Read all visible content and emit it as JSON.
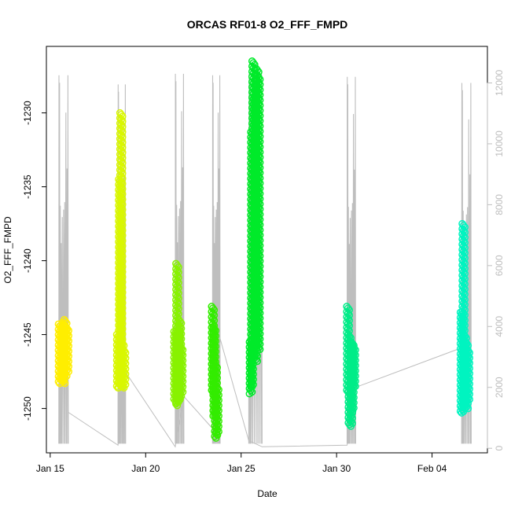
{
  "chart_data": {
    "type": "scatter",
    "title": "ORCAS RF01-8 O2_FFF_FMPD",
    "xlabel": "Date",
    "ylabel": "O2_FFF_FMPD",
    "x_ticks": [
      "Jan 15",
      "Jan 20",
      "Jan 25",
      "Jan 30",
      "Feb 04"
    ],
    "x_tick_days": [
      15,
      20,
      25,
      30,
      35
    ],
    "xlim_days": [
      14.8,
      37.9
    ],
    "ylim": [
      -1253.0,
      -1225.5
    ],
    "y_ticks": [
      -1250,
      -1245,
      -1240,
      -1235,
      -1230
    ],
    "y2_ticks": [
      0,
      2000,
      4000,
      6000,
      8000,
      10000,
      12000
    ],
    "y2lim": [
      -150,
      13200
    ],
    "secondary_color": "#bebebe",
    "grid": false,
    "series": [
      {
        "color": "#ffee00",
        "points": [
          {
            "day": 15.5,
            "min": -1248.3,
            "max": -1244.3
          },
          {
            "day": 15.6,
            "min": -1248.1,
            "max": -1244.4
          },
          {
            "day": 15.7,
            "min": -1248.3,
            "max": -1244.2
          },
          {
            "day": 15.8,
            "min": -1247.8,
            "max": -1244.0
          },
          {
            "day": 15.9,
            "min": -1247.5,
            "max": -1244.5
          }
        ]
      },
      {
        "color": "#d9f700",
        "points": [
          {
            "day": 18.55,
            "min": -1248.6,
            "max": -1245.0
          },
          {
            "day": 18.65,
            "min": -1248.6,
            "max": -1234.5
          },
          {
            "day": 18.72,
            "min": -1248.0,
            "max": -1230.0
          },
          {
            "day": 18.8,
            "min": -1248.6,
            "max": -1245.5
          },
          {
            "day": 18.88,
            "min": -1248.5,
            "max": -1246.0
          }
        ]
      },
      {
        "color": "#88f200",
        "points": [
          {
            "day": 21.55,
            "min": -1249.6,
            "max": -1244.8
          },
          {
            "day": 21.65,
            "min": -1249.8,
            "max": -1240.2
          },
          {
            "day": 21.72,
            "min": -1249.5,
            "max": -1244.5
          },
          {
            "day": 21.8,
            "min": -1249.4,
            "max": -1244.0
          },
          {
            "day": 21.88,
            "min": -1249.0,
            "max": -1245.8
          }
        ]
      },
      {
        "color": "#33ec00",
        "points": [
          {
            "day": 23.52,
            "min": -1249.0,
            "max": -1243.1
          },
          {
            "day": 23.6,
            "min": -1250.5,
            "max": -1244.5
          },
          {
            "day": 23.68,
            "min": -1252.0,
            "max": -1247.0
          },
          {
            "day": 23.76,
            "min": -1251.8,
            "max": -1248.5
          }
        ]
      },
      {
        "color": "#00ea2a",
        "points": [
          {
            "day": 25.5,
            "min": -1249.0,
            "max": -1245.5
          },
          {
            "day": 25.57,
            "min": -1248.5,
            "max": -1231.3
          },
          {
            "day": 25.64,
            "min": -1246.5,
            "max": -1226.5
          },
          {
            "day": 25.71,
            "min": -1245.0,
            "max": -1228.0
          },
          {
            "day": 25.78,
            "min": -1246.8,
            "max": -1229.0
          },
          {
            "day": 25.85,
            "min": -1245.5,
            "max": -1227.0
          },
          {
            "day": 25.92,
            "min": -1246.0,
            "max": -1227.5
          }
        ]
      },
      {
        "color": "#00ec88",
        "points": [
          {
            "day": 30.6,
            "min": -1249.0,
            "max": -1243.1
          },
          {
            "day": 30.68,
            "min": -1251.2,
            "max": -1245.0
          },
          {
            "day": 30.76,
            "min": -1251.0,
            "max": -1245.5
          },
          {
            "day": 30.84,
            "min": -1250.2,
            "max": -1245.5
          },
          {
            "day": 30.92,
            "min": -1248.5,
            "max": -1245.8
          }
        ]
      },
      {
        "color": "#00f4c0",
        "points": [
          {
            "day": 36.55,
            "min": -1250.3,
            "max": -1243.5
          },
          {
            "day": 36.65,
            "min": -1250.2,
            "max": -1237.5
          },
          {
            "day": 36.73,
            "min": -1250.0,
            "max": -1245.0
          },
          {
            "day": 36.82,
            "min": -1250.0,
            "max": -1245.5
          },
          {
            "day": 36.9,
            "min": -1249.5,
            "max": -1246.0
          }
        ]
      }
    ],
    "altitude_flights": [
      {
        "start": 15.45,
        "end": 15.95,
        "peak": 12250
      },
      {
        "start": 18.55,
        "end": 18.95,
        "peak": 11950
      },
      {
        "start": 21.55,
        "end": 22.0,
        "peak": 12300
      },
      {
        "start": 23.5,
        "end": 23.9,
        "peak": 12250
      },
      {
        "start": 25.4,
        "end": 26.1,
        "peak": 12300
      },
      {
        "start": 30.55,
        "end": 31.0,
        "peak": 12200
      },
      {
        "start": 36.55,
        "end": 37.05,
        "peak": 12000
      }
    ],
    "altitude_connectors": [
      [
        15.95,
        1180
      ],
      [
        18.55,
        100
      ],
      [
        18.95,
        2500
      ],
      [
        21.55,
        50
      ],
      [
        22.0,
        1700
      ],
      [
        23.5,
        650
      ],
      [
        23.9,
        3600
      ],
      [
        25.4,
        250
      ],
      [
        26.1,
        50
      ],
      [
        30.55,
        100
      ],
      [
        31.0,
        2000
      ],
      [
        36.55,
        3300
      ]
    ]
  }
}
